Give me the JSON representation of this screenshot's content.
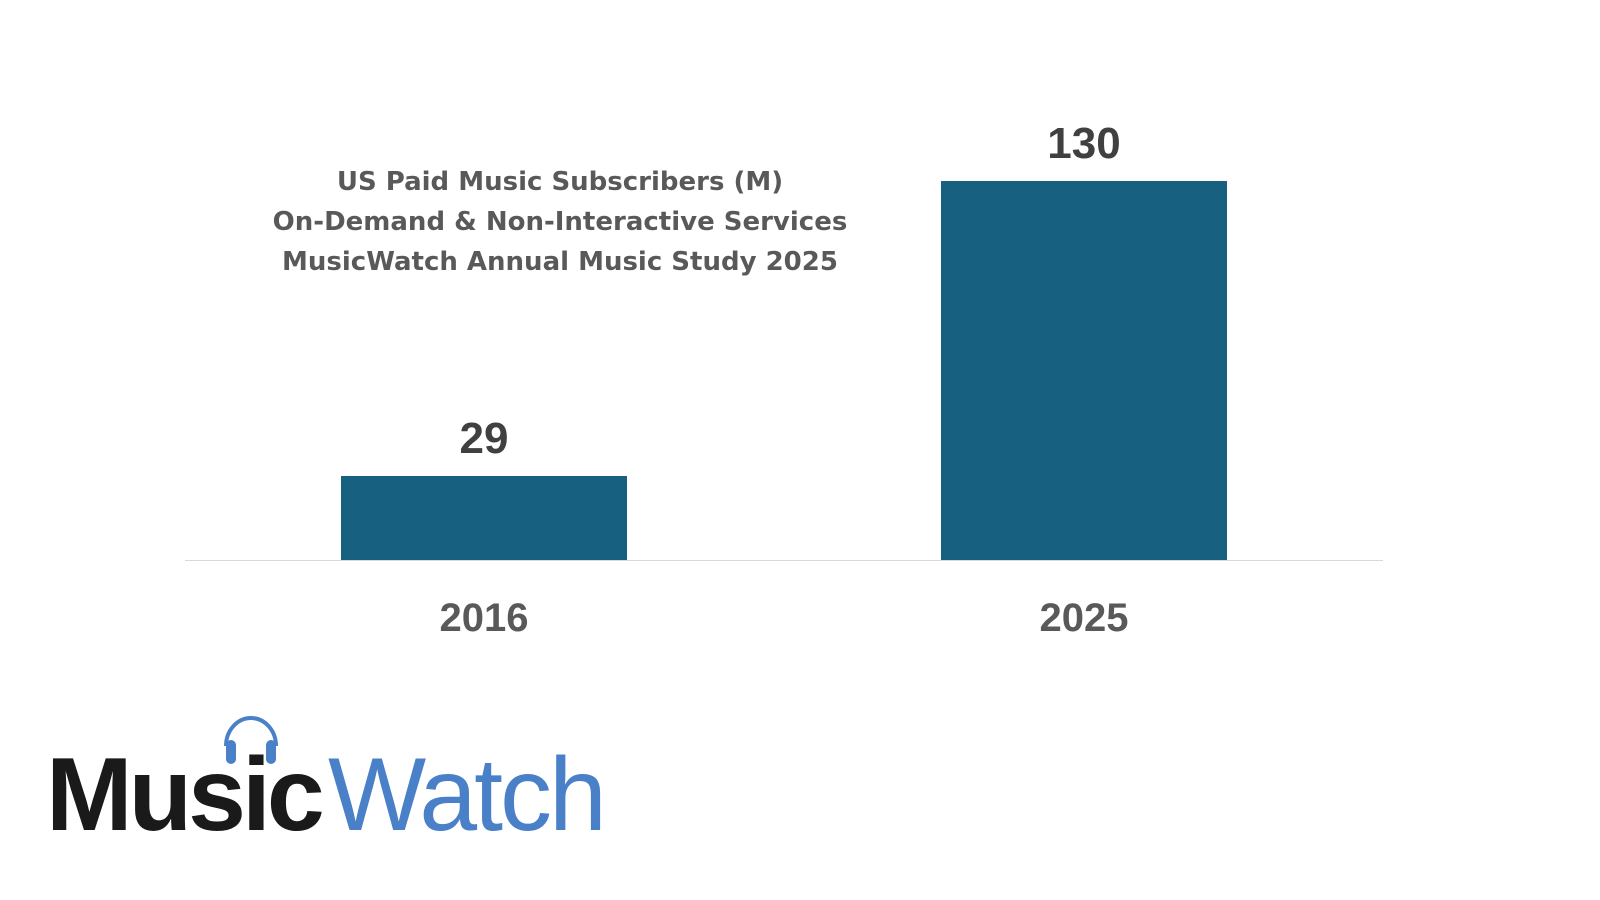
{
  "chart_data": {
    "type": "bar",
    "title": "US Paid Music Subscribers (M)",
    "subtitle_lines": [
      "On-Demand & Non-Interactive Services",
      "MusicWatch Annual Music Study 2025"
    ],
    "categories": [
      "2016",
      "2025"
    ],
    "values": [
      29,
      130
    ],
    "data_labels": [
      "29",
      "130"
    ],
    "xlabel": "",
    "ylabel": "",
    "ylim": [
      0,
      130
    ],
    "grid": false,
    "legend": null,
    "bar_color": "#17607f"
  },
  "title": {
    "line1": "US Paid Music Subscribers (M)",
    "line2": "On-Demand & Non-Interactive Services",
    "line3": "MusicWatch Annual Music Study 2025"
  },
  "bars": [
    {
      "category": "2016",
      "label": "29"
    },
    {
      "category": "2025",
      "label": "130"
    }
  ],
  "logo": {
    "part1": "Music",
    "part2": "Watch",
    "icon": "headphones-icon",
    "color_dark": "#1a1a1a",
    "color_blue": "#4a80c8"
  }
}
